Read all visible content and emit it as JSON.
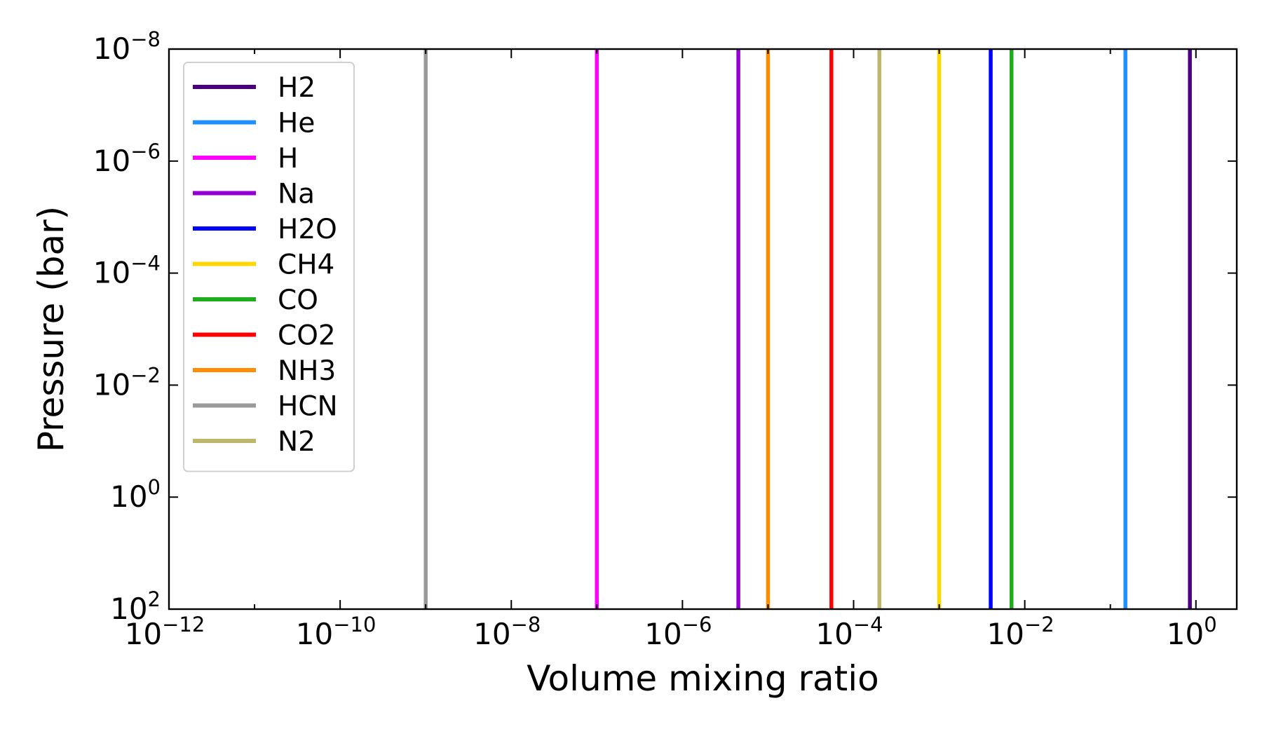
{
  "chart_data": {
    "type": "line",
    "title": "",
    "xlabel": "Volume mixing ratio",
    "ylabel": "Pressure (bar)",
    "x_scale": "log",
    "y_scale": "log",
    "y_inverted": true,
    "xlim": [
      1e-12,
      3
    ],
    "ylim": [
      100,
      1e-08
    ],
    "x_ticks": [
      {
        "value": 1e-12,
        "base": "10",
        "exp": "−12"
      },
      {
        "value": 1e-10,
        "base": "10",
        "exp": "−10"
      },
      {
        "value": 1e-08,
        "base": "10",
        "exp": "−8"
      },
      {
        "value": 1e-06,
        "base": "10",
        "exp": "−6"
      },
      {
        "value": 0.0001,
        "base": "10",
        "exp": "−4"
      },
      {
        "value": 0.01,
        "base": "10",
        "exp": "−2"
      },
      {
        "value": 1,
        "base": "10",
        "exp": "0"
      }
    ],
    "y_ticks": [
      {
        "value": 1e-08,
        "base": "10",
        "exp": "−8"
      },
      {
        "value": 1e-06,
        "base": "10",
        "exp": "−6"
      },
      {
        "value": 0.0001,
        "base": "10",
        "exp": "−4"
      },
      {
        "value": 0.01,
        "base": "10",
        "exp": "−2"
      },
      {
        "value": 1,
        "base": "10",
        "exp": "0"
      },
      {
        "value": 100,
        "base": "10",
        "exp": "2"
      }
    ],
    "grid": false,
    "legend_position": "top-left",
    "series": [
      {
        "name": "H2",
        "color": "#4b0082",
        "x": [
          0.85,
          0.85
        ],
        "y": [
          100,
          1e-08
        ]
      },
      {
        "name": "He",
        "color": "#1e90ff",
        "x": [
          0.15,
          0.15
        ],
        "y": [
          100,
          1e-08
        ]
      },
      {
        "name": "H",
        "color": "#ff00ff",
        "x": [
          1e-07,
          1e-07
        ],
        "y": [
          100,
          1e-08
        ]
      },
      {
        "name": "Na",
        "color": "#9400d3",
        "x": [
          4.5e-06,
          4.5e-06
        ],
        "y": [
          100,
          1e-08
        ]
      },
      {
        "name": "H2O",
        "color": "#0000ff",
        "x": [
          0.004,
          0.004
        ],
        "y": [
          100,
          1e-08
        ]
      },
      {
        "name": "CH4",
        "color": "#ffd700",
        "x": [
          0.001,
          0.001
        ],
        "y": [
          100,
          1e-08
        ]
      },
      {
        "name": "CO",
        "color": "#1fad1f",
        "x": [
          0.007,
          0.007
        ],
        "y": [
          100,
          1e-08
        ]
      },
      {
        "name": "CO2",
        "color": "#ff0000",
        "x": [
          5.5e-05,
          5.5e-05
        ],
        "y": [
          100,
          1e-08
        ]
      },
      {
        "name": "NH3",
        "color": "#ff8c00",
        "x": [
          1e-05,
          1e-05
        ],
        "y": [
          100,
          1e-08
        ]
      },
      {
        "name": "HCN",
        "color": "#999999",
        "x": [
          1e-09,
          1e-09
        ],
        "y": [
          100,
          1e-08
        ]
      },
      {
        "name": "N2",
        "color": "#bdb76b",
        "x": [
          0.0002,
          0.0002
        ],
        "y": [
          100,
          1e-08
        ]
      }
    ]
  }
}
